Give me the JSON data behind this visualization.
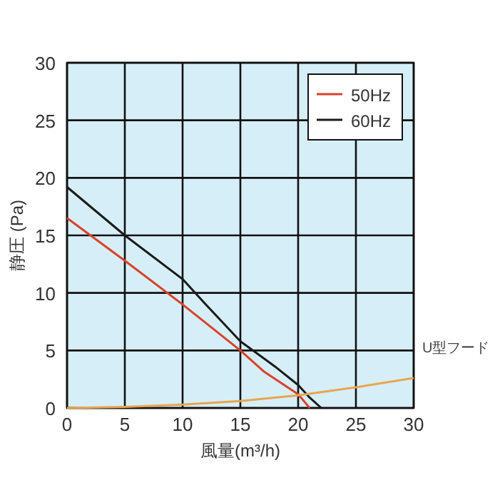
{
  "chart_data": {
    "type": "line",
    "xlabel": "風量(m³/h)",
    "ylabel": "静圧 (Pa)",
    "xlim": [
      0,
      30
    ],
    "ylim": [
      0,
      30
    ],
    "xticks": [
      0,
      5,
      10,
      15,
      20,
      25,
      30
    ],
    "yticks": [
      0,
      5,
      10,
      15,
      20,
      25,
      30
    ],
    "grid": true,
    "legend": "top right",
    "annotations": [
      {
        "text": "U型フード",
        "x": 30,
        "y": 2.6
      }
    ],
    "series": [
      {
        "name": "50Hz",
        "color": "#d9412b",
        "x": [
          0,
          5,
          10,
          15,
          17,
          20,
          21
        ],
        "values": [
          16.5,
          12.8,
          9,
          5,
          3.2,
          1.2,
          0
        ]
      },
      {
        "name": "60Hz",
        "color": "#1a1a1a",
        "x": [
          0,
          5,
          10,
          12,
          15,
          18,
          20,
          21,
          22
        ],
        "values": [
          19.2,
          15,
          11.2,
          9,
          5.8,
          3.6,
          2,
          0.9,
          0
        ]
      },
      {
        "color": "#e8a550",
        "x": [
          0,
          5,
          10,
          15,
          20,
          25,
          30
        ],
        "values": [
          0,
          0.1,
          0.3,
          0.6,
          1.1,
          1.8,
          2.6
        ]
      }
    ]
  }
}
